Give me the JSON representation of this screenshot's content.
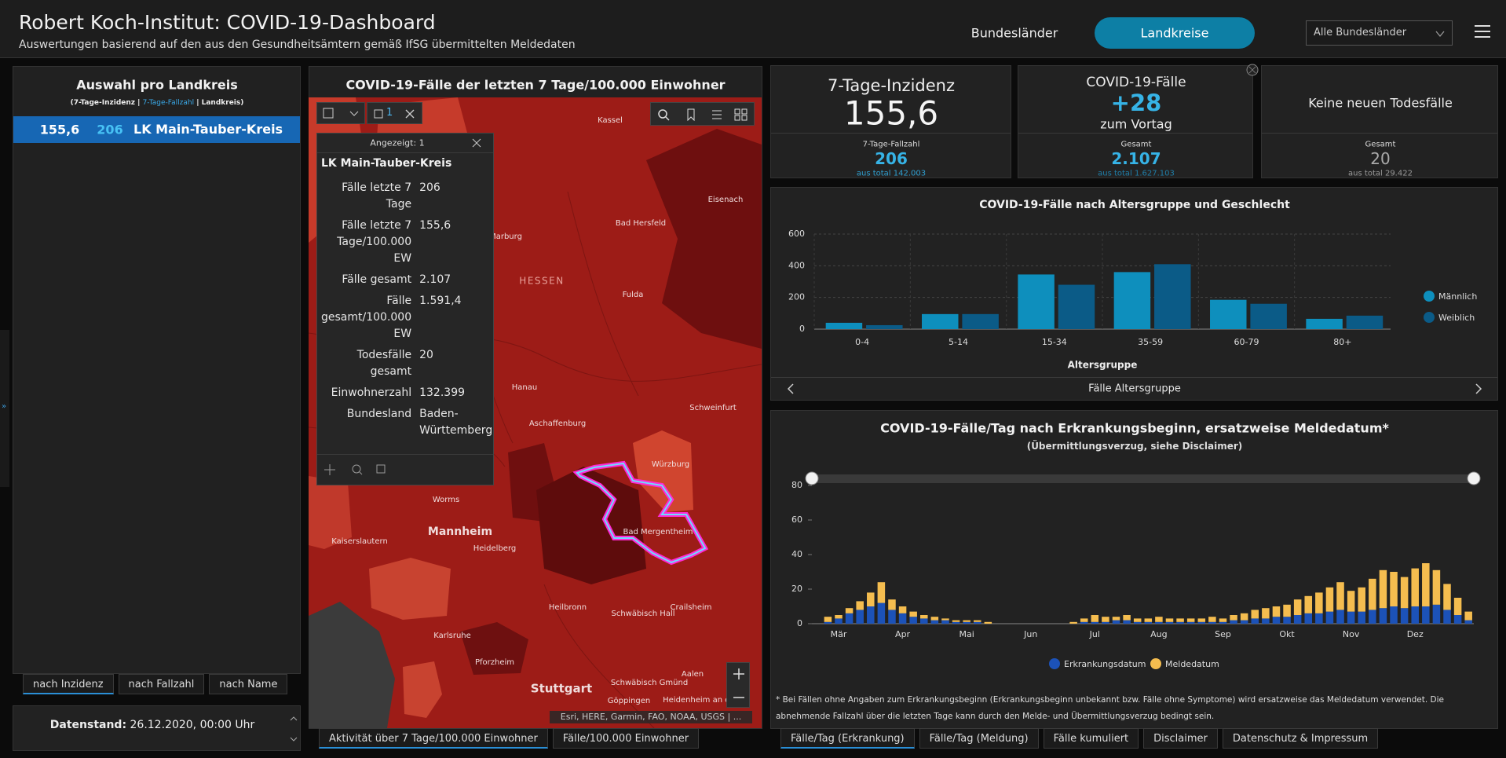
{
  "header": {
    "title": "Robert Koch-Institut: COVID-19-Dashboard",
    "subtitle": "Auswertungen basierend auf den aus den Gesundheitsämtern gemäß IfSG übermittelten Meldedaten",
    "nav": [
      "Bundesländer",
      "Landkreise"
    ],
    "dropdown": "Alle Bundesländer"
  },
  "list": {
    "title": "Auswahl pro Landkreis",
    "legend": [
      "(7-Tage-Inzidenz | ",
      "7-Tage-Fallzahl",
      " | Landkreis)"
    ],
    "rows": [
      [
        "155,6",
        "206",
        "LK Main-Tauber-Kreis"
      ]
    ],
    "tabs": [
      "nach Inzidenz",
      "nach Fallzahl",
      "nach Name"
    ],
    "status": [
      "Datenstand:",
      "26.12.2020, 00:00 Uhr"
    ]
  },
  "map": {
    "title": "COVID-19-Fälle der letzten 7 Tage/100.000 Einwohner",
    "tool_count": "1",
    "popup": {
      "header": "Angezeigt: 1",
      "title": "LK Main-Tauber-Kreis",
      "rows": [
        [
          "Fälle letzte 7 Tage",
          "206"
        ],
        [
          "Fälle letzte 7 Tage/100.000 EW",
          "155,6"
        ],
        [
          "Fälle gesamt",
          "2.107"
        ],
        [
          "Fälle gesamt/100.000 EW",
          "1.591,4"
        ],
        [
          "Todesfälle gesamt",
          "20"
        ],
        [
          "Einwohnerzahl",
          "132.399"
        ],
        [
          "Bundesland",
          "Baden-Württemberg"
        ]
      ]
    },
    "places": [
      "Kassel",
      "Eisenach",
      "Bad Hersfeld",
      "Marburg",
      "HESSEN",
      "Fulda",
      "Hanau",
      "Aschaffenburg",
      "Schweinfurt",
      "Würzburg",
      "Worms",
      "Mannheim",
      "Kaiserslautern",
      "Heidelberg",
      "Bad Mergentheim",
      "Heilbronn",
      "Schwäbisch Hall",
      "Crailsheim",
      "Karlsruhe",
      "Pforzheim",
      "Stuttgart",
      "Aalen",
      "Schwäbisch Gmünd",
      "Göppingen",
      "Heidenheim an der"
    ],
    "attribution": "Esri, HERE, Garmin, FAO, NOAA, USGS | ...",
    "tabs": [
      "Aktivität über 7 Tage/100.000 Einwohner",
      "Fälle/100.000 Einwohner"
    ]
  },
  "kpis": [
    {
      "title": "7-Tage-Inzidenz",
      "value": "155,6",
      "sub_label": "7-Tage-Fallzahl",
      "sub_value": "206",
      "sub_total": "aus total 142.003"
    },
    {
      "title": "COVID-19-Fälle",
      "value": "+28",
      "note": "zum Vortag",
      "sub_label": "Gesamt",
      "sub_value": "2.107",
      "sub_total": "aus total 1.627.103"
    },
    {
      "title": "Keine neuen Todesfälle",
      "sub_label": "Gesamt",
      "sub_value": "20",
      "sub_total": "aus total 29.422"
    }
  ],
  "chart_data": [
    {
      "type": "bar",
      "title": "COVID-19-Fälle nach Altersgruppe und Geschlecht",
      "categories": [
        "0-4",
        "5-14",
        "15-34",
        "35-59",
        "60-79",
        "80+"
      ],
      "series": [
        {
          "name": "Männlich",
          "color": "#0e8fbd",
          "values": [
            40,
            95,
            345,
            360,
            185,
            65
          ]
        },
        {
          "name": "Weiblich",
          "color": "#0b5b87",
          "values": [
            25,
            95,
            280,
            410,
            160,
            85
          ]
        }
      ],
      "ylim": [
        0,
        600
      ],
      "yticks": [
        0,
        200,
        400,
        600
      ],
      "xlabel": "Altersgruppe",
      "grid": true,
      "legend": "right",
      "pager": "Fälle Altersgruppe"
    },
    {
      "type": "stacked_bar",
      "title": "COVID-19-Fälle/Tag nach Erkrankungsbeginn, ersatzweise Meldedatum*",
      "subtitle": "(Übermittlungsverzug, siehe Disclaimer)",
      "categories": [
        null,
        null,
        "Mär",
        null,
        null,
        null,
        null,
        null,
        "Apr",
        null,
        null,
        null,
        null,
        null,
        "Mai",
        null,
        null,
        null,
        null,
        null,
        "Jun",
        null,
        null,
        null,
        null,
        null,
        "Jul",
        null,
        null,
        null,
        null,
        null,
        "Aug",
        null,
        null,
        null,
        null,
        null,
        "Sep",
        null,
        null,
        null,
        null,
        null,
        "Okt",
        null,
        null,
        null,
        null,
        null,
        "Nov",
        null,
        null,
        null,
        null,
        null,
        "Dez",
        null,
        null,
        null,
        null,
        null
      ],
      "series": [
        {
          "name": "Erkrankungsdatum",
          "color": "#1c52b8",
          "values": [
            0,
            1,
            3,
            6,
            8,
            10,
            12,
            8,
            6,
            4,
            3,
            2,
            2,
            1,
            1,
            1,
            0,
            0,
            0,
            0,
            0,
            0,
            0,
            0,
            0,
            1,
            1,
            1,
            2,
            2,
            1,
            1,
            1,
            1,
            1,
            1,
            1,
            1,
            1,
            2,
            2,
            3,
            3,
            4,
            4,
            5,
            6,
            6,
            7,
            8,
            7,
            7,
            8,
            9,
            10,
            9,
            10,
            10,
            11,
            8,
            5,
            2
          ]
        },
        {
          "name": "Meldedatum",
          "color": "#f5bd4f",
          "values": [
            0,
            3,
            2,
            3,
            5,
            8,
            12,
            6,
            4,
            3,
            2,
            2,
            1,
            1,
            1,
            1,
            1,
            0,
            0,
            0,
            0,
            0,
            0,
            0,
            1,
            2,
            4,
            3,
            2,
            3,
            2,
            2,
            3,
            2,
            2,
            2,
            2,
            3,
            2,
            3,
            4,
            5,
            6,
            6,
            7,
            9,
            10,
            12,
            14,
            16,
            12,
            14,
            18,
            22,
            20,
            18,
            22,
            25,
            20,
            15,
            10,
            5
          ]
        }
      ],
      "ylim": [
        0,
        80
      ],
      "yticks": [
        0,
        20,
        40,
        60,
        80
      ],
      "grid": false,
      "legend": "bottom",
      "note": "* Bei Fällen ohne Angaben zum Erkrankungsbeginn (Erkrankungsbeginn unbekannt bzw. Fälle ohne Symptome) wird ersatzweise das Meldedatum verwendet. Die abnehmende Fallzahl über die letzten Tage kann durch den Melde- und Übermittlungsverzug bedingt sein."
    }
  ],
  "bottom_tabs": [
    "Fälle/Tag (Erkrankung)",
    "Fälle/Tag (Meldung)",
    "Fälle kumuliert",
    "Disclaimer",
    "Datenschutz & Impressum"
  ]
}
